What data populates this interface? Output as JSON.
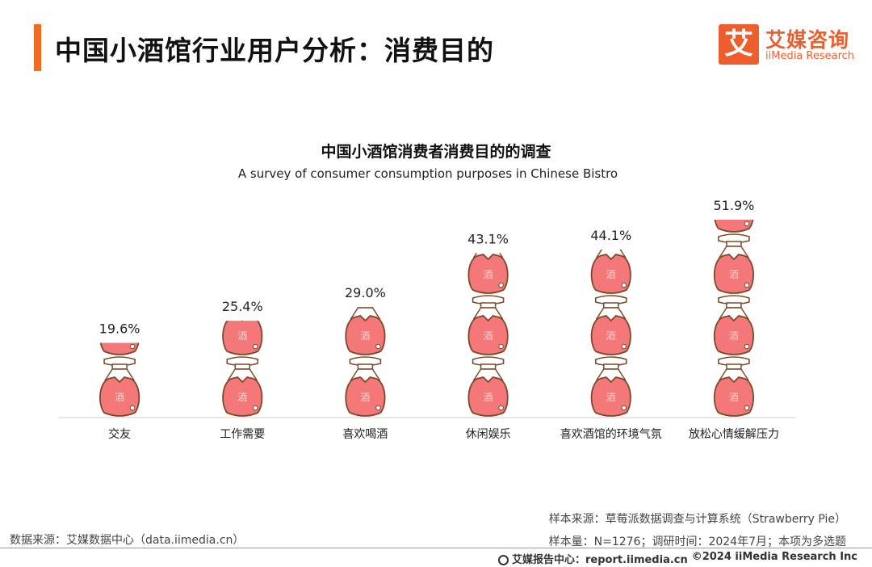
{
  "header": {
    "title": "中国小酒馆行业用户分析：消费目的",
    "logo_cn": "艾媒咨询",
    "logo_en": "iiMedia Research",
    "logo_mark": "艾",
    "accent_color": "#f26b21"
  },
  "chart_data": {
    "type": "bar",
    "title": "中国小酒馆消费者消费目的的调查",
    "subtitle": "A survey of consumer consumption purposes in Chinese Bistro",
    "categories": [
      "交友",
      "工作需要",
      "喜欢喝酒",
      "休闲娱乐",
      "喜欢酒馆的环境气氛",
      "放松心情缓解压力"
    ],
    "values": [
      19.6,
      25.4,
      29.0,
      43.1,
      44.1,
      51.9
    ],
    "value_labels": [
      "19.6%",
      "25.4%",
      "29.0%",
      "43.1%",
      "44.1%",
      "51.9%"
    ],
    "unit": "%",
    "ylim": [
      0,
      60
    ],
    "grid": false,
    "legend": "none",
    "mark_style": "stacked wine-jar pictograms",
    "jar_label": "酒",
    "colors": {
      "jar_fill": "#f4777a",
      "jar_outline": "#7a4a2a",
      "neck": "#ffffff"
    }
  },
  "footer": {
    "source_left": "数据来源：艾媒数据中心（data.iimedia.cn）",
    "sample_source": "样本来源：草莓派数据调查与计算系统（Strawberry Pie）",
    "sample_info": "样本量：N=1276；调研时间：2024年7月；本项为多选题",
    "site": "艾媒报告中心：report.iimedia.cn",
    "copyright": "©2024  iiMedia Research  Inc"
  }
}
